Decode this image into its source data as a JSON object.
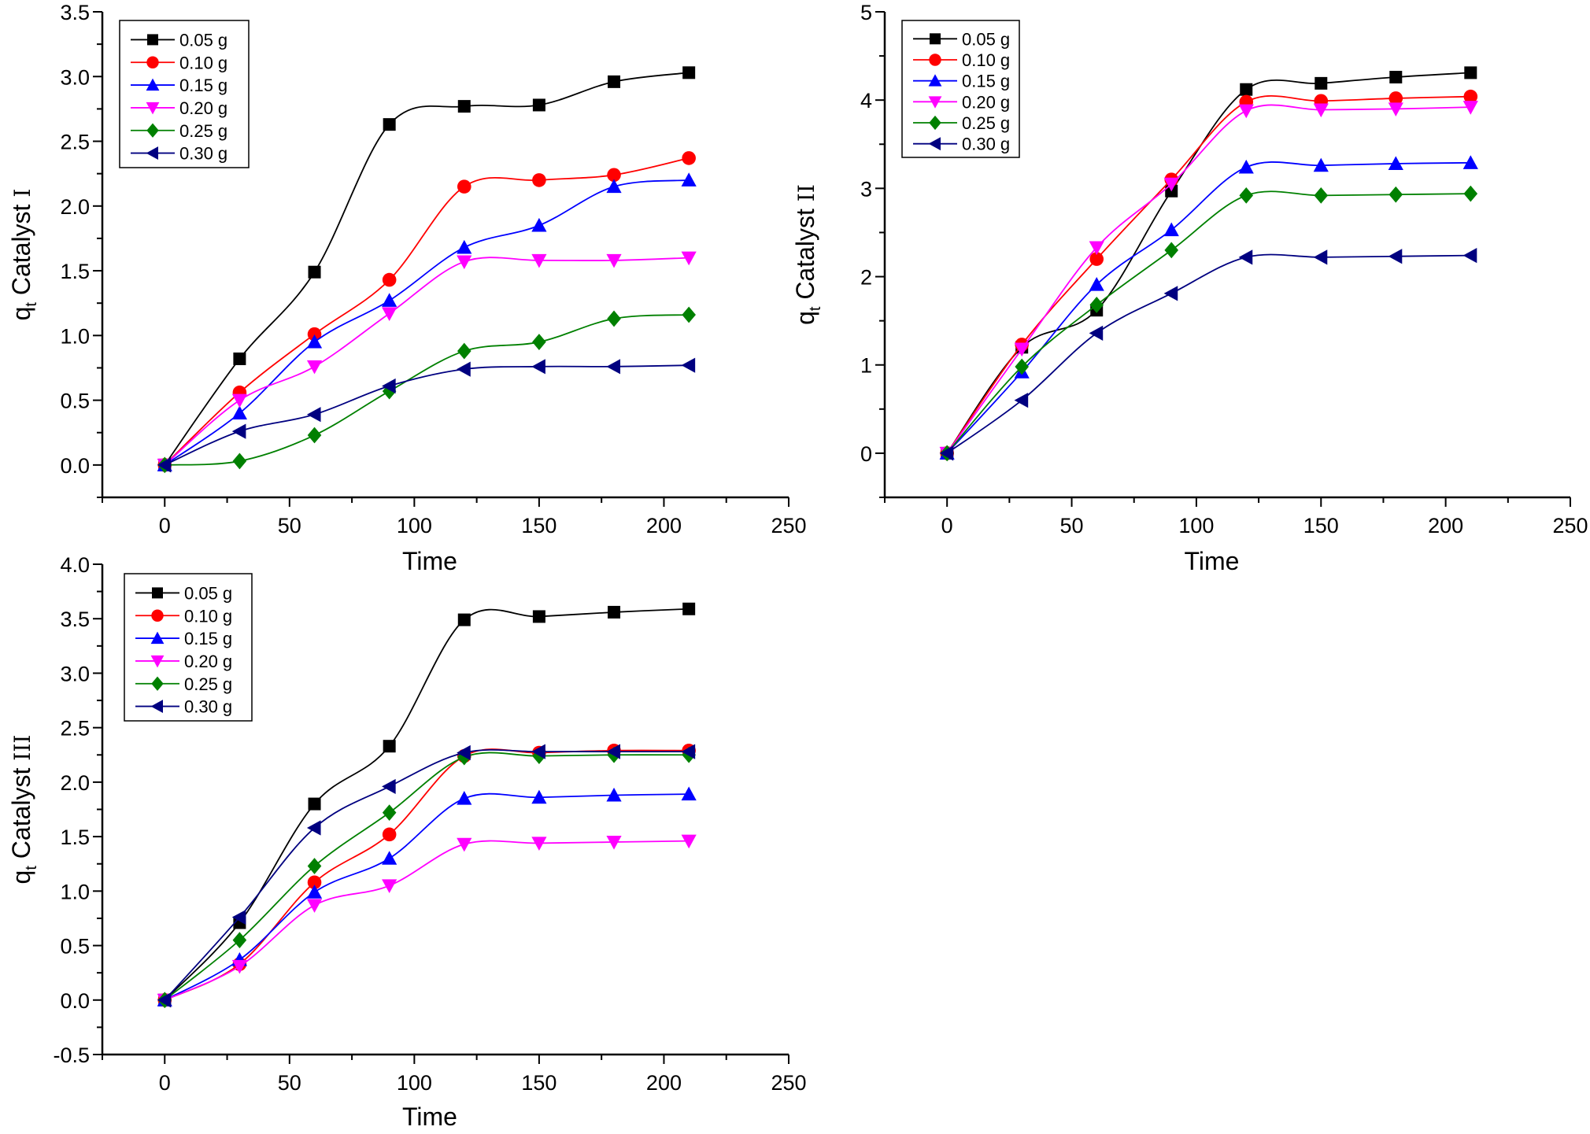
{
  "chart_data": [
    {
      "type": "line",
      "xlabel": "Time",
      "ylabel_main": "q",
      "ylabel_sub": "t",
      "ylabel_suffix": " Catalyst ",
      "ylabel_roman": "I",
      "xlim": [
        -25,
        250
      ],
      "ylim": [
        -0.25,
        3.5
      ],
      "xticks": [
        0,
        50,
        100,
        150,
        200,
        250
      ],
      "yticks": [
        0.0,
        0.5,
        1.0,
        1.5,
        2.0,
        2.5,
        3.0,
        3.5
      ],
      "ytick_labels": [
        "0.0",
        "0.5",
        "1.0",
        "1.5",
        "2.0",
        "2.5",
        "3.0",
        "3.5"
      ],
      "grid": false,
      "legend_position": "top-left",
      "x": [
        0,
        30,
        60,
        90,
        120,
        150,
        180,
        210
      ],
      "series": [
        {
          "name": "0.05 g",
          "marker": "square",
          "color": "#000000",
          "values": [
            0,
            0.82,
            1.49,
            2.63,
            2.77,
            2.78,
            2.96,
            3.03
          ]
        },
        {
          "name": "0.10 g",
          "marker": "circle",
          "color": "#ff0000",
          "values": [
            0,
            0.56,
            1.01,
            1.43,
            2.15,
            2.2,
            2.24,
            2.37
          ]
        },
        {
          "name": "0.15 g",
          "marker": "triangle-up",
          "color": "#0000ff",
          "values": [
            0,
            0.4,
            0.95,
            1.27,
            1.68,
            1.85,
            2.15,
            2.2
          ]
        },
        {
          "name": "0.20 g",
          "marker": "triangle-down",
          "color": "#ff00ff",
          "values": [
            0,
            0.5,
            0.76,
            1.17,
            1.57,
            1.58,
            1.58,
            1.6
          ]
        },
        {
          "name": "0.25 g",
          "marker": "diamond",
          "color": "#008000",
          "values": [
            0,
            0.03,
            0.23,
            0.57,
            0.88,
            0.95,
            1.13,
            1.16
          ]
        },
        {
          "name": "0.30 g",
          "marker": "triangle-left",
          "color": "#000080",
          "values": [
            0,
            0.26,
            0.39,
            0.61,
            0.74,
            0.76,
            0.76,
            0.77
          ]
        }
      ]
    },
    {
      "type": "line",
      "xlabel": "Time",
      "ylabel_main": "q",
      "ylabel_sub": "t",
      "ylabel_suffix": " Catalyst ",
      "ylabel_roman": "II",
      "xlim": [
        -25,
        250
      ],
      "ylim": [
        -0.5,
        5
      ],
      "xticks": [
        0,
        50,
        100,
        150,
        200,
        250
      ],
      "yticks": [
        0,
        1,
        2,
        3,
        4,
        5
      ],
      "ytick_labels": [
        "0",
        "1",
        "2",
        "3",
        "4",
        "5"
      ],
      "grid": false,
      "legend_position": "top-left",
      "x": [
        0,
        30,
        60,
        90,
        120,
        150,
        180,
        210
      ],
      "series": [
        {
          "name": "0.05 g",
          "marker": "square",
          "color": "#000000",
          "values": [
            0,
            1.2,
            1.62,
            2.97,
            4.12,
            4.19,
            4.26,
            4.31
          ]
        },
        {
          "name": "0.10 g",
          "marker": "circle",
          "color": "#ff0000",
          "values": [
            0,
            1.23,
            2.2,
            3.1,
            3.98,
            3.99,
            4.02,
            4.04
          ]
        },
        {
          "name": "0.15 g",
          "marker": "triangle-up",
          "color": "#0000ff",
          "values": [
            0,
            0.92,
            1.91,
            2.53,
            3.24,
            3.26,
            3.28,
            3.29
          ]
        },
        {
          "name": "0.20 g",
          "marker": "triangle-down",
          "color": "#ff00ff",
          "values": [
            0,
            1.18,
            2.33,
            3.05,
            3.88,
            3.89,
            3.9,
            3.92
          ]
        },
        {
          "name": "0.25 g",
          "marker": "diamond",
          "color": "#008000",
          "values": [
            0,
            0.98,
            1.68,
            2.3,
            2.92,
            2.92,
            2.93,
            2.94
          ]
        },
        {
          "name": "0.30 g",
          "marker": "triangle-left",
          "color": "#000080",
          "values": [
            0,
            0.6,
            1.36,
            1.81,
            2.22,
            2.22,
            2.23,
            2.24
          ]
        }
      ]
    },
    {
      "type": "line",
      "xlabel": "Time",
      "ylabel_main": "q",
      "ylabel_sub": "t",
      "ylabel_suffix": " Catalyst ",
      "ylabel_roman": "III",
      "xlim": [
        -25,
        250
      ],
      "ylim": [
        -0.5,
        4.0
      ],
      "xticks": [
        0,
        50,
        100,
        150,
        200,
        250
      ],
      "yticks": [
        -0.5,
        0.0,
        0.5,
        1.0,
        1.5,
        2.0,
        2.5,
        3.0,
        3.5,
        4.0
      ],
      "ytick_labels": [
        "-0.5",
        "0.0",
        "0.5",
        "1.0",
        "1.5",
        "2.0",
        "2.5",
        "3.0",
        "3.5",
        "4.0"
      ],
      "grid": false,
      "legend_position": "top-left",
      "x": [
        0,
        30,
        60,
        90,
        120,
        150,
        180,
        210
      ],
      "series": [
        {
          "name": "0.05 g",
          "marker": "square",
          "color": "#000000",
          "values": [
            0,
            0.71,
            1.8,
            2.33,
            3.49,
            3.52,
            3.56,
            3.59
          ]
        },
        {
          "name": "0.10 g",
          "marker": "circle",
          "color": "#ff0000",
          "values": [
            0,
            0.33,
            1.08,
            1.52,
            2.24,
            2.27,
            2.29,
            2.29
          ]
        },
        {
          "name": "0.15 g",
          "marker": "triangle-up",
          "color": "#0000ff",
          "values": [
            0,
            0.37,
            0.99,
            1.3,
            1.85,
            1.86,
            1.88,
            1.89
          ]
        },
        {
          "name": "0.20 g",
          "marker": "triangle-down",
          "color": "#ff00ff",
          "values": [
            0,
            0.31,
            0.87,
            1.05,
            1.43,
            1.44,
            1.45,
            1.46
          ]
        },
        {
          "name": "0.25 g",
          "marker": "diamond",
          "color": "#008000",
          "values": [
            0,
            0.55,
            1.23,
            1.72,
            2.23,
            2.24,
            2.25,
            2.25
          ]
        },
        {
          "name": "0.30 g",
          "marker": "triangle-left",
          "color": "#000080",
          "values": [
            0,
            0.76,
            1.58,
            1.96,
            2.27,
            2.28,
            2.28,
            2.28
          ]
        }
      ]
    }
  ]
}
